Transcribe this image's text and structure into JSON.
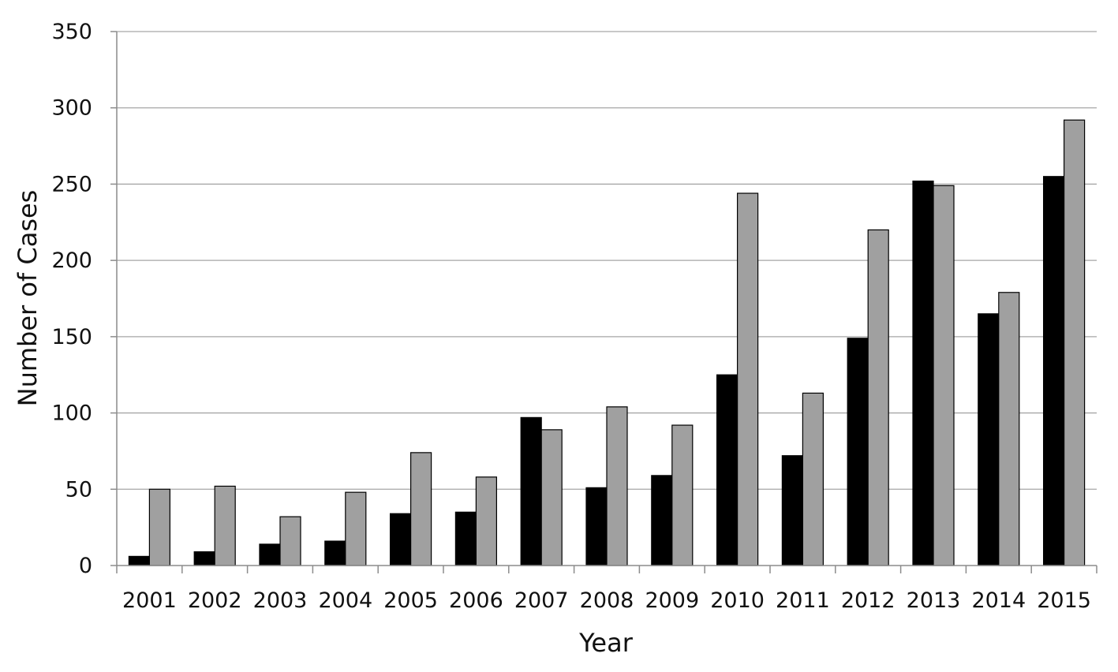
{
  "chart_data": {
    "type": "bar",
    "title": "",
    "xlabel": "Year",
    "ylabel": "Number of Cases",
    "ylim": [
      0,
      350
    ],
    "yticks": [
      0,
      50,
      100,
      150,
      200,
      250,
      300,
      350
    ],
    "grid": "horizontal",
    "legend": "none",
    "categories": [
      "2001",
      "2002",
      "2003",
      "2004",
      "2005",
      "2006",
      "2007",
      "2008",
      "2009",
      "2010",
      "2011",
      "2012",
      "2013",
      "2014",
      "2015"
    ],
    "series": [
      {
        "color": "#000000",
        "values": [
          6,
          9,
          14,
          16,
          34,
          35,
          97,
          51,
          59,
          125,
          72,
          149,
          252,
          165,
          255
        ]
      },
      {
        "color": "#a0a0a0",
        "values": [
          50,
          52,
          32,
          48,
          74,
          58,
          89,
          104,
          92,
          244,
          113,
          220,
          249,
          179,
          292
        ]
      }
    ]
  }
}
